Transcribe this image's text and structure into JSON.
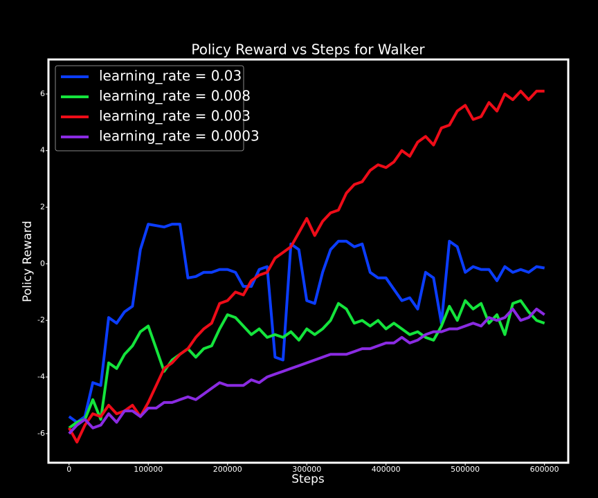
{
  "chart_data": {
    "type": "line",
    "title": "Policy Reward vs Steps for Walker",
    "xlabel": "Steps",
    "ylabel": "Policy Reward",
    "x": [
      0,
      10000,
      20000,
      30000,
      40000,
      50000,
      60000,
      70000,
      80000,
      90000,
      100000,
      110000,
      120000,
      130000,
      140000,
      150000,
      160000,
      170000,
      180000,
      190000,
      200000,
      210000,
      220000,
      230000,
      240000,
      250000,
      260000,
      270000,
      280000,
      290000,
      300000,
      310000,
      320000,
      330000,
      340000,
      350000,
      360000,
      370000,
      380000,
      390000,
      400000,
      410000,
      420000,
      430000,
      440000,
      450000,
      460000,
      470000,
      480000,
      490000,
      500000,
      510000,
      520000,
      530000,
      540000,
      550000,
      560000,
      570000,
      580000,
      590000,
      600000
    ],
    "series": [
      {
        "name": "learning_rate = 0.03",
        "color": "#0b3dff",
        "values": [
          -5.4,
          -5.6,
          -5.4,
          -4.2,
          -4.3,
          -1.9,
          -2.1,
          -1.7,
          -1.5,
          0.5,
          1.4,
          1.35,
          1.3,
          1.4,
          1.4,
          -0.5,
          -0.45,
          -0.3,
          -0.3,
          -0.2,
          -0.2,
          -0.3,
          -0.8,
          -0.8,
          -0.2,
          -0.1,
          -3.3,
          -3.4,
          0.7,
          0.5,
          -1.3,
          -1.4,
          -0.3,
          0.5,
          0.8,
          0.8,
          0.6,
          0.7,
          -0.3,
          -0.5,
          -0.5,
          -0.9,
          -1.3,
          -1.2,
          -1.6,
          -0.3,
          -0.5,
          -2.1,
          0.8,
          0.6,
          -0.3,
          -0.1,
          -0.2,
          -0.2,
          -0.6,
          -0.1,
          -0.3,
          -0.2,
          -0.3,
          -0.1,
          -0.15
        ]
      },
      {
        "name": "learning_rate = 0.008",
        "color": "#14e43c",
        "values": [
          -5.8,
          -5.6,
          -5.5,
          -4.8,
          -5.5,
          -3.5,
          -3.7,
          -3.2,
          -2.9,
          -2.4,
          -2.2,
          -3.0,
          -3.8,
          -3.4,
          -3.2,
          -3.0,
          -3.3,
          -3.0,
          -2.9,
          -2.3,
          -1.8,
          -1.9,
          -2.2,
          -2.5,
          -2.3,
          -2.6,
          -2.5,
          -2.6,
          -2.4,
          -2.7,
          -2.3,
          -2.5,
          -2.3,
          -2.0,
          -1.4,
          -1.6,
          -2.1,
          -2.0,
          -2.2,
          -2.0,
          -2.3,
          -2.1,
          -2.3,
          -2.5,
          -2.4,
          -2.6,
          -2.7,
          -2.2,
          -1.5,
          -2.0,
          -1.3,
          -1.6,
          -1.4,
          -2.1,
          -1.8,
          -2.5,
          -1.4,
          -1.3,
          -1.7,
          -2.0,
          -2.1
        ]
      },
      {
        "name": "learning_rate = 0.003",
        "color": "#ee0c18",
        "values": [
          -5.8,
          -6.3,
          -5.7,
          -5.3,
          -5.4,
          -5.0,
          -5.3,
          -5.2,
          -5.0,
          -5.4,
          -4.9,
          -4.3,
          -3.7,
          -3.5,
          -3.2,
          -3.0,
          -2.6,
          -2.3,
          -2.1,
          -1.4,
          -1.3,
          -1.0,
          -1.1,
          -0.6,
          -0.4,
          -0.3,
          0.2,
          0.4,
          0.6,
          1.1,
          1.6,
          1.0,
          1.5,
          1.8,
          1.9,
          2.5,
          2.8,
          2.9,
          3.3,
          3.5,
          3.4,
          3.6,
          4.0,
          3.8,
          4.3,
          4.5,
          4.2,
          4.8,
          4.9,
          5.4,
          5.6,
          5.1,
          5.2,
          5.7,
          5.4,
          6.0,
          5.8,
          6.1,
          5.8,
          6.1,
          6.1
        ]
      },
      {
        "name": "learning_rate = 0.0003",
        "color": "#8a2be2",
        "values": [
          -6.0,
          -5.7,
          -5.5,
          -5.8,
          -5.7,
          -5.3,
          -5.6,
          -5.2,
          -5.2,
          -5.4,
          -5.1,
          -5.1,
          -4.9,
          -4.9,
          -4.8,
          -4.7,
          -4.8,
          -4.6,
          -4.4,
          -4.2,
          -4.3,
          -4.3,
          -4.3,
          -4.1,
          -4.2,
          -4.0,
          -3.9,
          -3.8,
          -3.7,
          -3.6,
          -3.5,
          -3.4,
          -3.3,
          -3.2,
          -3.2,
          -3.2,
          -3.1,
          -3.0,
          -3.0,
          -2.9,
          -2.8,
          -2.8,
          -2.6,
          -2.8,
          -2.7,
          -2.5,
          -2.4,
          -2.4,
          -2.3,
          -2.3,
          -2.2,
          -2.1,
          -2.2,
          -1.9,
          -2.0,
          -1.9,
          -1.6,
          -2.0,
          -1.9,
          -1.6,
          -1.8
        ]
      }
    ],
    "xlim": [
      -26000,
      630000
    ],
    "xticks": [
      0,
      100000,
      200000,
      300000,
      400000,
      500000,
      600000
    ],
    "ylim": [
      -7.03,
      7.22
    ],
    "yticks": [
      -6,
      -4,
      -2,
      0,
      2,
      4,
      6
    ],
    "legend": "upper left"
  }
}
